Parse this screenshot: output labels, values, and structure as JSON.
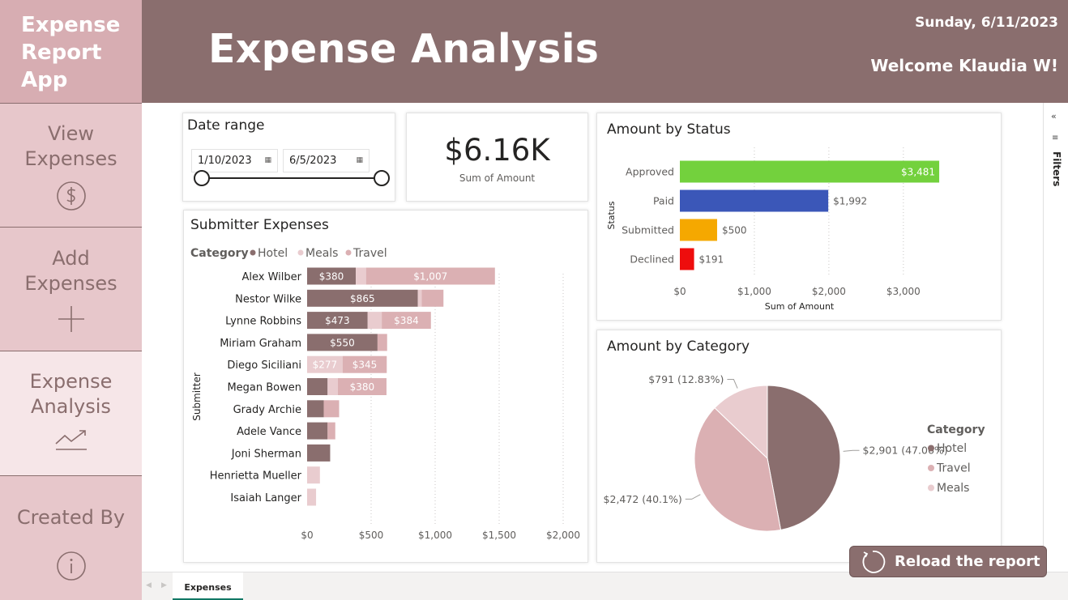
{
  "app": {
    "title": "Expense\nReport\nApp"
  },
  "nav": {
    "view_label": "View\nExpenses",
    "add_label": "Add\nExpenses",
    "analysis_label": "Expense\nAnalysis",
    "created_label": "Created By"
  },
  "header": {
    "title": "Expense Analysis",
    "date": "Sunday, 6/11/2023",
    "welcome": "Welcome Klaudia W!"
  },
  "filters": {
    "label": "Filters"
  },
  "date_slicer": {
    "title": "Date range",
    "start": "1/10/2023",
    "end": "6/5/2023"
  },
  "kpi": {
    "value": "$6.16K",
    "label": "Sum of Amount"
  },
  "colors": {
    "brand": "#8a6e6e",
    "nav_bg": "#e7c7cb",
    "hotel": "#8a6e6e",
    "travel": "#dbb0b3",
    "meals": "#e9cccf",
    "approved": "#73d13d",
    "paid": "#3b57b8",
    "submitted": "#f5a800",
    "declined": "#ee0d0d"
  },
  "tabs": {
    "expenses": "Expenses"
  },
  "reload": {
    "label": "Reload the report"
  },
  "chart_data": [
    {
      "type": "bar",
      "orientation": "horizontal",
      "stacked": true,
      "title": "Submitter Expenses",
      "legend_title": "Category",
      "legend_position": "top-left",
      "ylabel": "Submitter",
      "xlabel": "",
      "xlim": [
        0,
        2000
      ],
      "x_ticks": [
        "$0",
        "$500",
        "$1,000",
        "$1,500",
        "$2,000"
      ],
      "x_tick_values": [
        0,
        500,
        1000,
        1500,
        2000
      ],
      "categories": [
        "Alex Wilber",
        "Nestor Wilke",
        "Lynne Robbins",
        "Miriam Graham",
        "Diego Siciliani",
        "Megan Bowen",
        "Grady Archie",
        "Adele Vance",
        "Joni Sherman",
        "Henrietta Mueller",
        "Isaiah Langer"
      ],
      "series": [
        {
          "name": "Hotel",
          "color": "#8a6e6e",
          "values": [
            380,
            865,
            473,
            550,
            0,
            160,
            130,
            160,
            180,
            0,
            0
          ],
          "labels": [
            "$380",
            "$865",
            "$473",
            "$550",
            "",
            "",
            "",
            "",
            "",
            "",
            ""
          ]
        },
        {
          "name": "Meals",
          "color": "#e9cccf",
          "values": [
            80,
            30,
            110,
            0,
            277,
            80,
            0,
            0,
            0,
            100,
            70
          ],
          "labels": [
            "",
            "",
            "",
            "",
            "$277",
            "",
            "",
            "",
            "",
            "",
            ""
          ]
        },
        {
          "name": "Travel",
          "color": "#dbb0b3",
          "values": [
            1007,
            170,
            384,
            75,
            345,
            380,
            120,
            60,
            0,
            0,
            0
          ],
          "labels": [
            "$1,007",
            "",
            "$384",
            "",
            "$345",
            "$380",
            "",
            "",
            "",
            "",
            ""
          ]
        }
      ]
    },
    {
      "type": "bar",
      "orientation": "horizontal",
      "title": "Amount by Status",
      "ylabel": "Status",
      "xlabel": "Sum of Amount",
      "xlim": [
        0,
        3600
      ],
      "x_ticks": [
        "$0",
        "$1,000",
        "$2,000",
        "$3,000"
      ],
      "x_tick_values": [
        0,
        1000,
        2000,
        3000
      ],
      "categories": [
        "Approved",
        "Paid",
        "Submitted",
        "Declined"
      ],
      "values": [
        3481,
        1992,
        500,
        191
      ],
      "labels": [
        "$3,481",
        "$1,992",
        "$500",
        "$191"
      ],
      "colors": [
        "#73d13d",
        "#3b57b8",
        "#f5a800",
        "#ee0d0d"
      ]
    },
    {
      "type": "pie",
      "title": "Amount by Category",
      "legend_title": "Category",
      "legend_position": "right",
      "categories": [
        "Hotel",
        "Travel",
        "Meals"
      ],
      "values": [
        2901,
        2472,
        791
      ],
      "labels": [
        "$2,901 (47.06%)",
        "$2,472 (40.1%)",
        "$791 (12.83%)"
      ],
      "colors": [
        "#8a6e6e",
        "#dbb0b3",
        "#e9cccf"
      ]
    }
  ]
}
